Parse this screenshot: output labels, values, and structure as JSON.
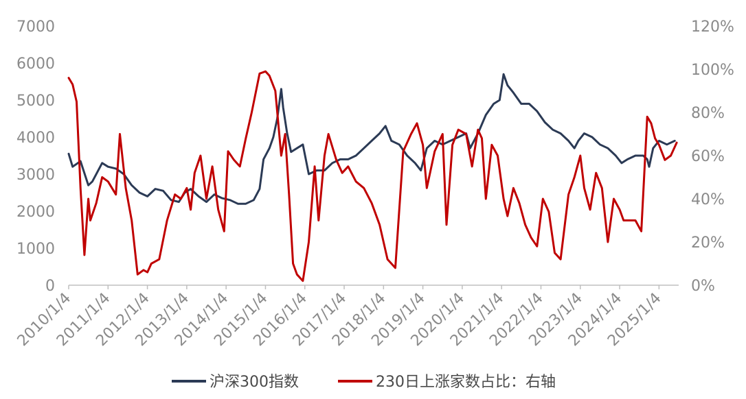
{
  "chart_data": {
    "type": "line",
    "title": "",
    "xlabel": "",
    "ylabel_left": "",
    "ylabel_right": "",
    "x_tick_labels": [
      "2010/1/4",
      "2011/1/4",
      "2012/1/4",
      "2013/1/4",
      "2014/1/4",
      "2015/1/4",
      "2016/1/4",
      "2017/1/4",
      "2018/1/4",
      "2019/1/4",
      "2020/1/4",
      "2021/1/4",
      "2022/1/4",
      "2023/1/4",
      "2024/1/4",
      "2025/1/4"
    ],
    "y_left_ticks": [
      "0",
      "1000",
      "2000",
      "3000",
      "4000",
      "5000",
      "6000",
      "7000"
    ],
    "y_right_ticks": [
      "0%",
      "20%",
      "40%",
      "60%",
      "80%",
      "100%",
      "120%"
    ],
    "y_left_range": [
      0,
      7000
    ],
    "y_right_range": [
      0,
      120
    ],
    "x_range": [
      2010.0,
      2025.5
    ],
    "grid": false,
    "legend_position": "bottom-center",
    "series": [
      {
        "name": "沪深300指数",
        "axis": "left",
        "color": "#2b3a55",
        "x": [
          2010.0,
          2010.1,
          2010.3,
          2010.5,
          2010.6,
          2010.75,
          2010.85,
          2011.0,
          2011.2,
          2011.4,
          2011.6,
          2011.8,
          2012.0,
          2012.2,
          2012.4,
          2012.6,
          2012.8,
          2012.95,
          2013.1,
          2013.3,
          2013.5,
          2013.7,
          2013.9,
          2014.1,
          2014.3,
          2014.5,
          2014.7,
          2014.85,
          2014.95,
          2015.1,
          2015.2,
          2015.3,
          2015.4,
          2015.45,
          2015.55,
          2015.65,
          2015.8,
          2015.95,
          2016.1,
          2016.3,
          2016.5,
          2016.7,
          2016.9,
          2017.1,
          2017.3,
          2017.5,
          2017.7,
          2017.9,
          2018.05,
          2018.2,
          2018.4,
          2018.6,
          2018.8,
          2018.95,
          2019.1,
          2019.3,
          2019.5,
          2019.7,
          2019.9,
          2020.1,
          2020.2,
          2020.4,
          2020.6,
          2020.8,
          2020.95,
          2021.05,
          2021.15,
          2021.3,
          2021.5,
          2021.7,
          2021.9,
          2022.1,
          2022.3,
          2022.5,
          2022.7,
          2022.85,
          2022.95,
          2023.1,
          2023.3,
          2023.5,
          2023.7,
          2023.9,
          2024.05,
          2024.2,
          2024.4,
          2024.6,
          2024.7,
          2024.75,
          2024.85,
          2025.0,
          2025.2,
          2025.4
        ],
        "values": [
          3550,
          3200,
          3350,
          2700,
          2800,
          3100,
          3300,
          3200,
          3150,
          3000,
          2700,
          2500,
          2400,
          2600,
          2550,
          2300,
          2250,
          2500,
          2600,
          2400,
          2250,
          2450,
          2350,
          2300,
          2200,
          2200,
          2300,
          2600,
          3400,
          3700,
          4000,
          4500,
          5300,
          4800,
          4100,
          3600,
          3700,
          3800,
          3000,
          3100,
          3100,
          3300,
          3400,
          3400,
          3500,
          3700,
          3900,
          4100,
          4300,
          3900,
          3800,
          3500,
          3300,
          3100,
          3700,
          3900,
          3800,
          3900,
          4000,
          4100,
          3700,
          4100,
          4600,
          4900,
          5000,
          5700,
          5400,
          5200,
          4900,
          4900,
          4700,
          4400,
          4200,
          4100,
          3900,
          3700,
          3900,
          4100,
          4000,
          3800,
          3700,
          3500,
          3300,
          3400,
          3500,
          3500,
          3400,
          3200,
          3700,
          3900,
          3800,
          3900
        ]
      },
      {
        "name": "230日上涨家数占比：右轴",
        "axis": "right",
        "color": "#c00000",
        "x": [
          2010.0,
          2010.1,
          2010.2,
          2010.3,
          2010.4,
          2010.5,
          2010.55,
          2010.7,
          2010.85,
          2011.0,
          2011.2,
          2011.3,
          2011.45,
          2011.6,
          2011.75,
          2011.9,
          2012.0,
          2012.1,
          2012.3,
          2012.5,
          2012.7,
          2012.85,
          2013.0,
          2013.1,
          2013.2,
          2013.35,
          2013.5,
          2013.65,
          2013.8,
          2013.95,
          2014.05,
          2014.2,
          2014.35,
          2014.5,
          2014.65,
          2014.85,
          2015.0,
          2015.1,
          2015.25,
          2015.4,
          2015.5,
          2015.6,
          2015.7,
          2015.8,
          2015.95,
          2016.1,
          2016.25,
          2016.35,
          2016.5,
          2016.6,
          2016.8,
          2016.95,
          2017.1,
          2017.3,
          2017.5,
          2017.7,
          2017.9,
          2018.1,
          2018.3,
          2018.5,
          2018.7,
          2018.85,
          2019.0,
          2019.1,
          2019.3,
          2019.5,
          2019.6,
          2019.75,
          2019.9,
          2020.1,
          2020.25,
          2020.4,
          2020.5,
          2020.6,
          2020.75,
          2020.9,
          2021.05,
          2021.15,
          2021.3,
          2021.45,
          2021.6,
          2021.75,
          2021.9,
          2022.05,
          2022.2,
          2022.35,
          2022.5,
          2022.7,
          2022.85,
          2023.0,
          2023.1,
          2023.25,
          2023.4,
          2023.55,
          2023.7,
          2023.85,
          2024.0,
          2024.1,
          2024.25,
          2024.4,
          2024.55,
          2024.7,
          2024.8,
          2024.9,
          2025.0,
          2025.15,
          2025.3,
          2025.45
        ],
        "values": [
          96,
          93,
          85,
          45,
          14,
          40,
          30,
          38,
          50,
          48,
          42,
          70,
          45,
          30,
          5,
          7,
          6,
          10,
          12,
          30,
          42,
          40,
          45,
          35,
          52,
          60,
          40,
          55,
          35,
          25,
          62,
          58,
          55,
          68,
          80,
          98,
          99,
          97,
          90,
          60,
          70,
          42,
          10,
          5,
          2,
          20,
          55,
          30,
          60,
          70,
          58,
          52,
          55,
          48,
          45,
          38,
          28,
          12,
          8,
          62,
          70,
          75,
          65,
          45,
          62,
          70,
          28,
          65,
          72,
          70,
          55,
          72,
          68,
          40,
          65,
          60,
          40,
          32,
          45,
          38,
          28,
          22,
          18,
          40,
          34,
          15,
          12,
          42,
          50,
          60,
          45,
          35,
          52,
          45,
          20,
          40,
          35,
          30,
          30,
          30,
          25,
          78,
          75,
          68,
          65,
          58,
          60,
          66
        ]
      }
    ]
  }
}
